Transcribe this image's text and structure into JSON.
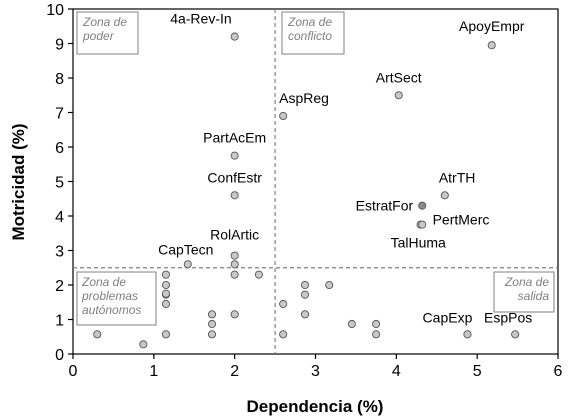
{
  "chart_data": {
    "type": "scatter",
    "xlabel": "Dependencia (%)",
    "ylabel": "Motricidad (%)",
    "xlim": [
      0,
      6
    ],
    "ylim": [
      0,
      10
    ],
    "xticks": [
      "0",
      "1",
      "2",
      "3",
      "4",
      "5",
      "6"
    ],
    "yticks": [
      "0",
      "1",
      "2",
      "3",
      "4",
      "5",
      "6",
      "7",
      "8",
      "9",
      "10"
    ],
    "threshold_x": 2.5,
    "threshold_y": 2.5,
    "zones": [
      {
        "lines": [
          "Zona de",
          "poder"
        ]
      },
      {
        "lines": [
          "Zona de",
          "conflicto"
        ]
      },
      {
        "lines": [
          "Zona de",
          "problemas",
          "autónomos"
        ]
      },
      {
        "lines": [
          "Zona de",
          "salida"
        ]
      }
    ],
    "points": [
      {
        "x": 2.0,
        "y": 9.2,
        "label": "4a-Rev-In"
      },
      {
        "x": 5.18,
        "y": 8.95,
        "label": "ApoyEmpr"
      },
      {
        "x": 4.03,
        "y": 7.5,
        "label": "ArtSect"
      },
      {
        "x": 2.6,
        "y": 6.9,
        "label": "AspReg"
      },
      {
        "x": 2.0,
        "y": 5.75,
        "label": "PartAcEm"
      },
      {
        "x": 2.0,
        "y": 4.6,
        "label": "ConfEstr"
      },
      {
        "x": 4.6,
        "y": 4.6,
        "label": "AtrTH"
      },
      {
        "x": 4.32,
        "y": 4.3,
        "label": "EstratFor"
      },
      {
        "x": 4.3,
        "y": 3.75,
        "label": "PertMerc"
      },
      {
        "x": 4.32,
        "y": 3.75,
        "label": "TalHuma"
      },
      {
        "x": 2.0,
        "y": 2.85,
        "label": "RolArtic"
      },
      {
        "x": 1.42,
        "y": 2.6,
        "label": "CapTecn"
      },
      {
        "x": 4.88,
        "y": 0.57,
        "label": "CapExp"
      },
      {
        "x": 5.47,
        "y": 0.57,
        "label": "EspPos"
      },
      {
        "x": 2.0,
        "y": 2.6,
        "label": ""
      },
      {
        "x": 2.0,
        "y": 2.3,
        "label": ""
      },
      {
        "x": 2.3,
        "y": 2.3,
        "label": ""
      },
      {
        "x": 1.15,
        "y": 2.3,
        "label": ""
      },
      {
        "x": 1.15,
        "y": 2.0,
        "label": ""
      },
      {
        "x": 1.15,
        "y": 1.72,
        "label": ""
      },
      {
        "x": 1.15,
        "y": 1.75,
        "label": ""
      },
      {
        "x": 1.15,
        "y": 1.45,
        "label": ""
      },
      {
        "x": 1.72,
        "y": 1.15,
        "label": ""
      },
      {
        "x": 2.0,
        "y": 1.15,
        "label": ""
      },
      {
        "x": 1.72,
        "y": 0.87,
        "label": ""
      },
      {
        "x": 1.72,
        "y": 0.57,
        "label": ""
      },
      {
        "x": 1.15,
        "y": 0.57,
        "label": ""
      },
      {
        "x": 0.3,
        "y": 0.57,
        "label": ""
      },
      {
        "x": 0.87,
        "y": 0.28,
        "label": ""
      },
      {
        "x": 2.87,
        "y": 2.0,
        "label": ""
      },
      {
        "x": 3.17,
        "y": 2.0,
        "label": ""
      },
      {
        "x": 2.87,
        "y": 1.72,
        "label": ""
      },
      {
        "x": 2.6,
        "y": 1.45,
        "label": ""
      },
      {
        "x": 2.87,
        "y": 1.15,
        "label": ""
      },
      {
        "x": 3.45,
        "y": 0.87,
        "label": ""
      },
      {
        "x": 3.75,
        "y": 0.87,
        "label": ""
      },
      {
        "x": 3.75,
        "y": 0.57,
        "label": ""
      },
      {
        "x": 2.6,
        "y": 0.57,
        "label": ""
      }
    ]
  }
}
